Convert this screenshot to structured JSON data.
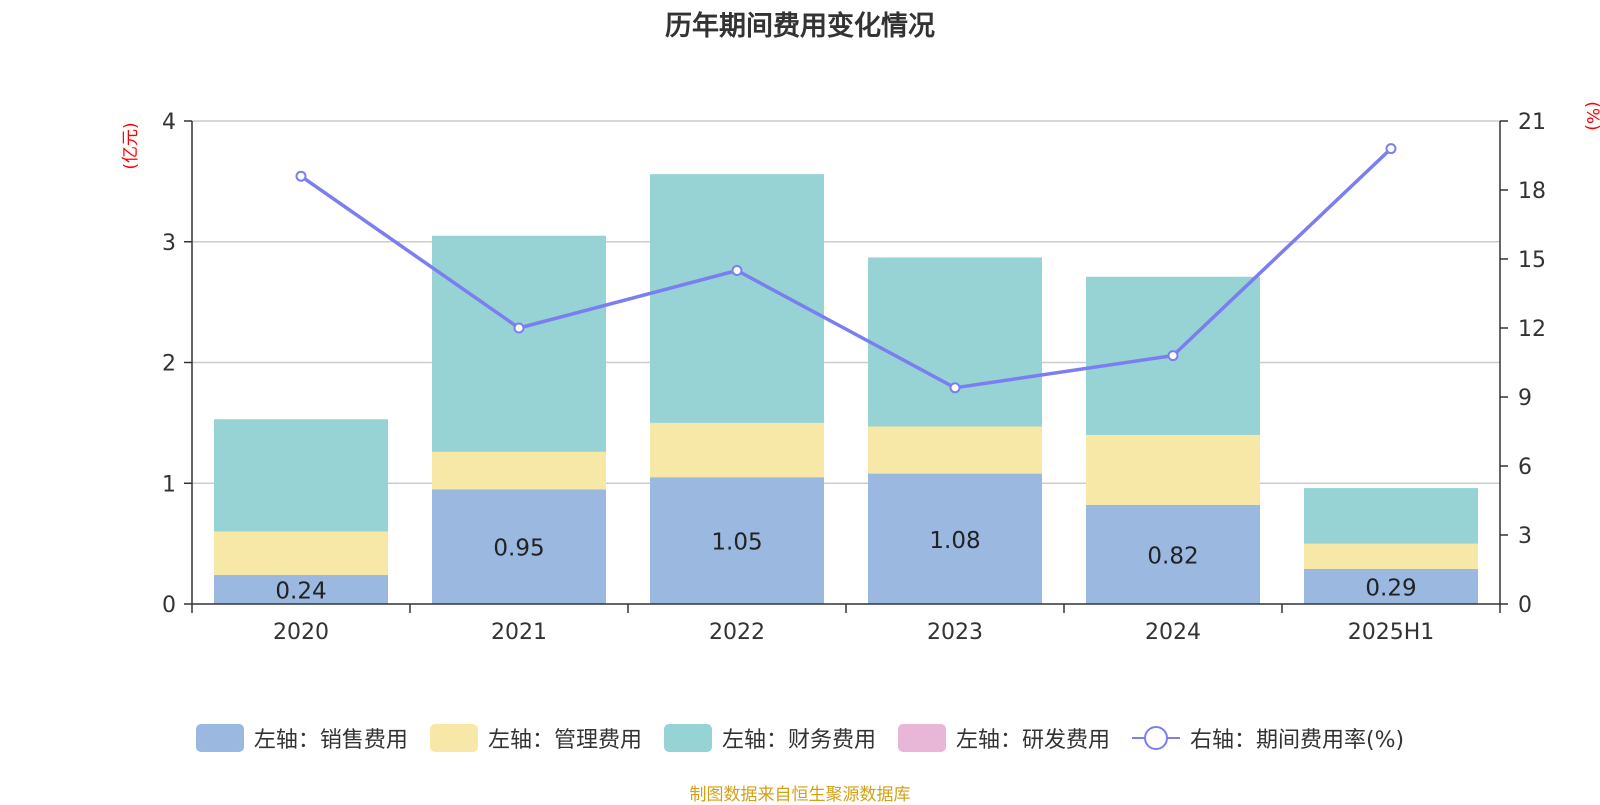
{
  "title": "历年期间费用变化情况",
  "source_note": "制图数据来自恒生聚源数据库",
  "chart_data": {
    "type": "bar",
    "title": "历年期间费用变化情况",
    "categories": [
      "2020",
      "2021",
      "2022",
      "2023",
      "2024",
      "2025H1"
    ],
    "y_left": {
      "unit": "(亿元)",
      "ylim": [
        0,
        4
      ],
      "ticks": [
        "0",
        "1",
        "2",
        "3",
        "4"
      ]
    },
    "y_right": {
      "unit": "(%)",
      "ylim": [
        0,
        21
      ],
      "ticks": [
        "0",
        "3",
        "6",
        "9",
        "12",
        "15",
        "18",
        "21"
      ]
    },
    "series": [
      {
        "name": "左轴：销售费用",
        "kind": "bar",
        "axis": "left",
        "color": "#9bb8e1",
        "values": [
          0.24,
          0.95,
          1.05,
          1.08,
          0.82,
          0.29
        ],
        "labels": [
          "0.24",
          "0.95",
          "1.05",
          "1.08",
          "0.82",
          "0.29"
        ]
      },
      {
        "name": "左轴：管理费用",
        "kind": "bar",
        "axis": "left",
        "color": "#f7e8a8",
        "values": [
          0.36,
          0.31,
          0.45,
          0.39,
          0.58,
          0.21
        ]
      },
      {
        "name": "左轴：财务费用",
        "kind": "bar",
        "axis": "left",
        "color": "#97d3d4",
        "values": [
          0.93,
          1.79,
          2.06,
          1.4,
          1.31,
          0.46
        ]
      },
      {
        "name": "左轴：研发费用",
        "kind": "bar",
        "axis": "left",
        "color": "#e8b6d6",
        "values": [
          0,
          0,
          0,
          0,
          0,
          0
        ]
      },
      {
        "name": "右轴：期间费用率(%)",
        "kind": "line",
        "axis": "right",
        "color": "#7b7ef0",
        "values": [
          18.6,
          12.0,
          14.5,
          9.4,
          10.8,
          19.8
        ]
      }
    ],
    "grid": true,
    "legend_position": "bottom"
  }
}
